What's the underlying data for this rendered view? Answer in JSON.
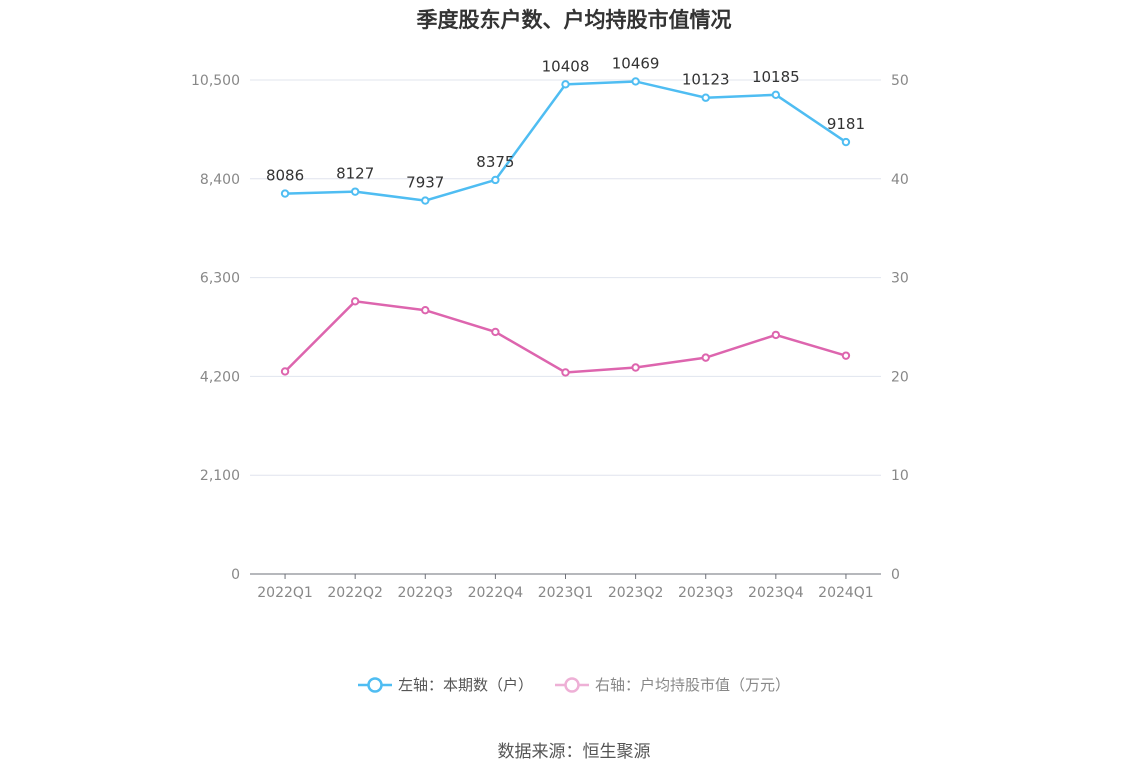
{
  "chart_data": {
    "type": "line",
    "title": "季度股东户数、户均持股市值情况",
    "categories": [
      "2022Q1",
      "2022Q2",
      "2022Q3",
      "2022Q4",
      "2023Q1",
      "2023Q2",
      "2023Q3",
      "2023Q4",
      "2024Q1"
    ],
    "y_left": {
      "ticks": [
        "0",
        "2,100",
        "4,200",
        "6,300",
        "8,400",
        "10,500"
      ],
      "range": [
        0,
        10500
      ]
    },
    "y_right": {
      "ticks": [
        "0",
        "10",
        "20",
        "30",
        "40",
        "50"
      ],
      "range": [
        0,
        50
      ]
    },
    "grid": true,
    "legend_position": "bottom",
    "series": [
      {
        "name": "左轴：本期数（户）",
        "axis": "left",
        "color": "#4fbdf2",
        "values": [
          8086,
          8127,
          7937,
          8375,
          10408,
          10469,
          10123,
          10185,
          9181
        ],
        "labels": [
          "8086",
          "8127",
          "7937",
          "8375",
          "10408",
          "10469",
          "10123",
          "10185",
          "9181"
        ]
      },
      {
        "name": "右轴：户均持股市值（万元）",
        "axis": "right",
        "color": "#dd65ae",
        "values": [
          20.5,
          27.6,
          26.7,
          24.5,
          20.4,
          20.9,
          21.9,
          24.2,
          22.1
        ]
      }
    ]
  },
  "source": "数据来源：恒生聚源"
}
